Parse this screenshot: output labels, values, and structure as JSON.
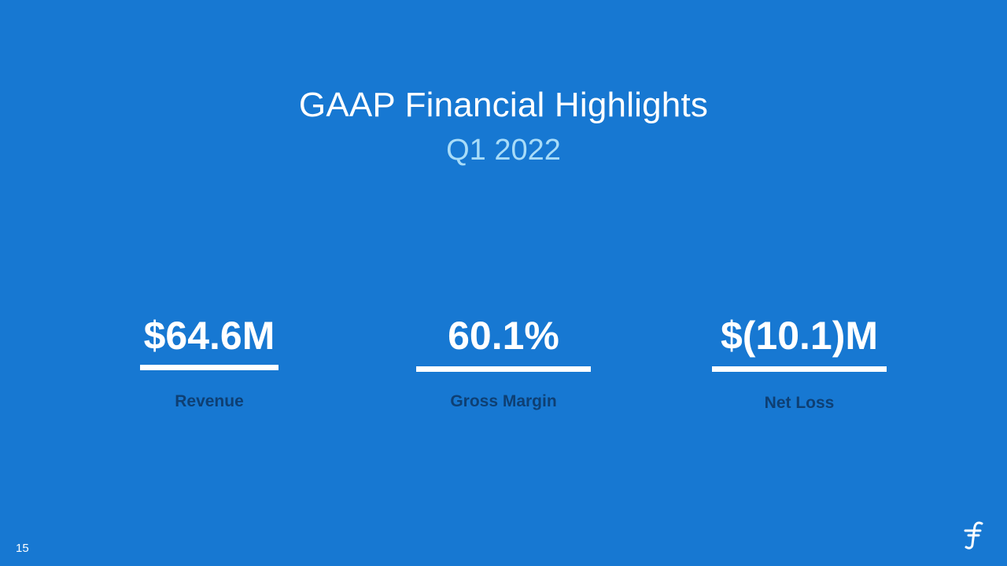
{
  "slide": {
    "title": "GAAP Financial Highlights",
    "subtitle": "Q1 2022",
    "page_number": "15"
  },
  "metrics": [
    {
      "value": "$64.6M",
      "label": "Revenue"
    },
    {
      "value": "60.1%",
      "label": "Gross Margin"
    },
    {
      "value": "$(10.1)M",
      "label": "Net Loss"
    }
  ],
  "logo": {
    "icon": "stylized-f-logo-icon"
  },
  "colors": {
    "background": "#1778D2",
    "title": "#FFFFFF",
    "subtitle": "#A8DCF8",
    "label": "#0E3F73",
    "rule": "#FFFFFF"
  }
}
